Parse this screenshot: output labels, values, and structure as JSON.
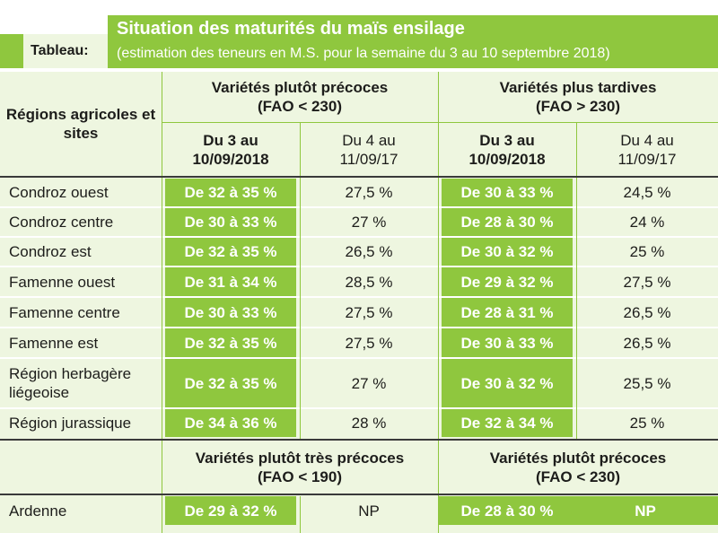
{
  "header": {
    "tab_label": "Tableau:",
    "title": "Situation des maturités du maïs ensilage",
    "subtitle": "(estimation des teneurs en M.S. pour la semaine du 3 au 10 septembre 2018)"
  },
  "table": {
    "row_header": "Régions agricoles et sites",
    "group1": {
      "title": "Variétés plutôt précoces",
      "fao": "(FAO < 230)"
    },
    "group2": {
      "title": "Variétés plus tardives",
      "fao": "(FAO > 230)"
    },
    "col_current": "Du 3 au 10/09/2018",
    "col_previous": "Du 4 au 11/09/17",
    "rows": [
      {
        "region": "Condroz ouest",
        "g1_current": "De 32 à 35 %",
        "g1_previous": "27,5 %",
        "g2_current": "De 30 à 33 %",
        "g2_previous": "24,5 %"
      },
      {
        "region": "Condroz centre",
        "g1_current": "De 30 à 33 %",
        "g1_previous": "27 %",
        "g2_current": "De 28 à 30 %",
        "g2_previous": "24 %"
      },
      {
        "region": "Condroz est",
        "g1_current": "De 32 à 35 %",
        "g1_previous": "26,5 %",
        "g2_current": "De 30 à 32 %",
        "g2_previous": "25 %"
      },
      {
        "region": "Famenne ouest",
        "g1_current": "De 31 à 34 %",
        "g1_previous": "28,5 %",
        "g2_current": "De 29 à 32 %",
        "g2_previous": "27,5 %"
      },
      {
        "region": "Famenne centre",
        "g1_current": "De 30 à 33 %",
        "g1_previous": "27,5 %",
        "g2_current": "De 28 à 31 %",
        "g2_previous": "26,5 %"
      },
      {
        "region": "Famenne est",
        "g1_current": "De 32 à 35 %",
        "g1_previous": "27,5 %",
        "g2_current": "De 30 à 33 %",
        "g2_previous": "26,5 %"
      },
      {
        "region": "Région herbagère liégeoise",
        "g1_current": "De 32 à 35 %",
        "g1_previous": "27 %",
        "g2_current": "De 30 à 32 %",
        "g2_previous": "25,5 %"
      },
      {
        "region": "Région jurassique",
        "g1_current": "De 34 à 36 %",
        "g1_previous": "28 %",
        "g2_current": "De 32 à 34 %",
        "g2_previous": "25 %"
      }
    ],
    "group3": {
      "title": "Variétés plutôt très précoces",
      "fao": "(FAO < 190)"
    },
    "group4": {
      "title": "Variétés plutôt précoces",
      "fao": "(FAO < 230)"
    },
    "ardenne": {
      "region": "Ardenne",
      "g3_current": "De 29 à 32 %",
      "g3_previous": "NP",
      "g4_current": "De 28 à 30 %",
      "g4_previous": "NP"
    }
  },
  "colors": {
    "green": "#8fc73e",
    "light_green": "#eef6e0",
    "text": "#1d1d1b"
  }
}
